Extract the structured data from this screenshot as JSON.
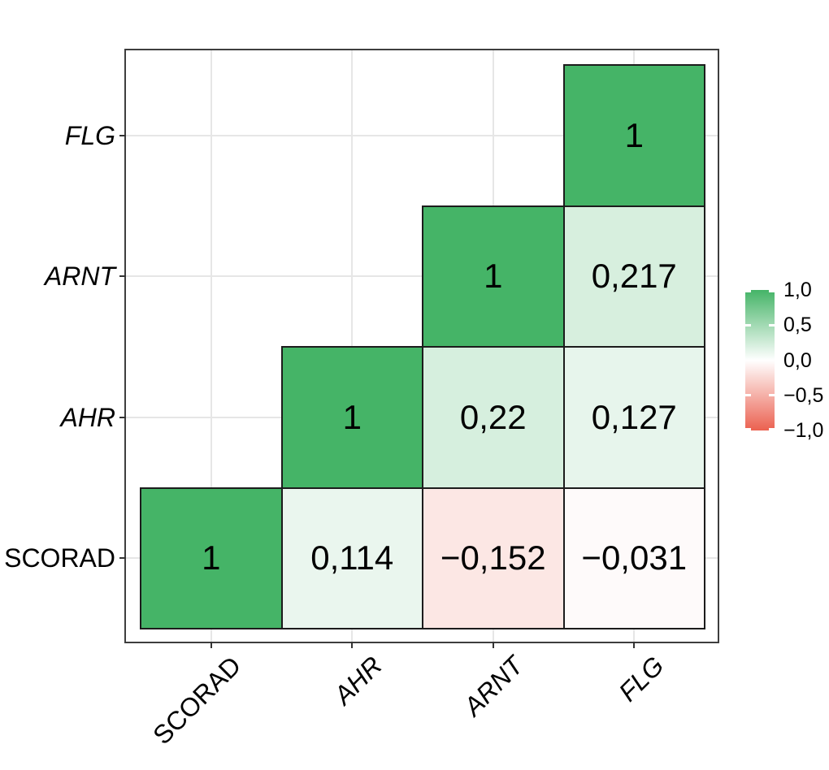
{
  "chart_data": {
    "type": "heatmap",
    "title": "",
    "description": "Triangular correlation matrix heatmap with correlation coefficients (comma decimal separator)",
    "x_axis": {
      "labels": [
        "SCORAD",
        "AHR",
        "ARNT",
        "FLG"
      ],
      "italic": [
        false,
        true,
        true,
        true
      ],
      "rotation_deg": 45
    },
    "y_axis": {
      "labels_top_to_bottom": [
        "FLG",
        "ARNT",
        "AHR",
        "SCORAD"
      ],
      "italic": [
        true,
        true,
        true,
        false
      ]
    },
    "cells": [
      {
        "row": "FLG",
        "col": "FLG",
        "value": 1,
        "label": "1"
      },
      {
        "row": "ARNT",
        "col": "ARNT",
        "value": 1,
        "label": "1"
      },
      {
        "row": "ARNT",
        "col": "FLG",
        "value": 0.217,
        "label": "0,217"
      },
      {
        "row": "AHR",
        "col": "AHR",
        "value": 1,
        "label": "1"
      },
      {
        "row": "AHR",
        "col": "ARNT",
        "value": 0.22,
        "label": "0,22"
      },
      {
        "row": "AHR",
        "col": "FLG",
        "value": 0.127,
        "label": "0,127"
      },
      {
        "row": "SCORAD",
        "col": "SCORAD",
        "value": 1,
        "label": "1"
      },
      {
        "row": "SCORAD",
        "col": "AHR",
        "value": 0.114,
        "label": "0,114"
      },
      {
        "row": "SCORAD",
        "col": "ARNT",
        "value": -0.152,
        "label": "−0,152"
      },
      {
        "row": "SCORAD",
        "col": "FLG",
        "value": -0.031,
        "label": "−0,031"
      }
    ],
    "legend": {
      "position": "right",
      "tick_labels": [
        "1,0",
        "0,5",
        "0,0",
        "−0,5",
        "−1,0"
      ],
      "tick_values": [
        1,
        0.5,
        0,
        -0.5,
        -1
      ],
      "range": [
        -1,
        1
      ]
    },
    "colors": {
      "positive_end": "#45B467",
      "midpoint": "#FFFFFF",
      "negative_end": "#EB6150",
      "cell_border": "#1C1C1C",
      "panel_border": "#3E3E3E",
      "gridline": "#E6E6E6",
      "text": "#000000"
    }
  }
}
